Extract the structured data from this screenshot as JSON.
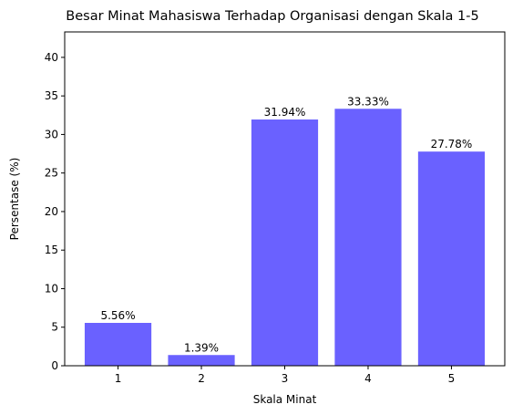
{
  "chart_data": {
    "type": "bar",
    "title": "Besar Minat Mahasiswa Terhadap Organisasi dengan Skala 1-5",
    "xlabel": "Skala Minat",
    "ylabel": "Persentase (%)",
    "categories": [
      "1",
      "2",
      "3",
      "4",
      "5"
    ],
    "values": [
      5.56,
      1.39,
      31.94,
      33.33,
      27.78
    ],
    "data_labels": [
      "5.56%",
      "1.39%",
      "31.94%",
      "33.33%",
      "27.78%"
    ],
    "ylim": [
      0,
      43.3
    ],
    "yticks": [
      0,
      5,
      10,
      15,
      20,
      25,
      30,
      35,
      40
    ],
    "grid": false,
    "legend": "none",
    "bar_color": "#6a61ff"
  }
}
